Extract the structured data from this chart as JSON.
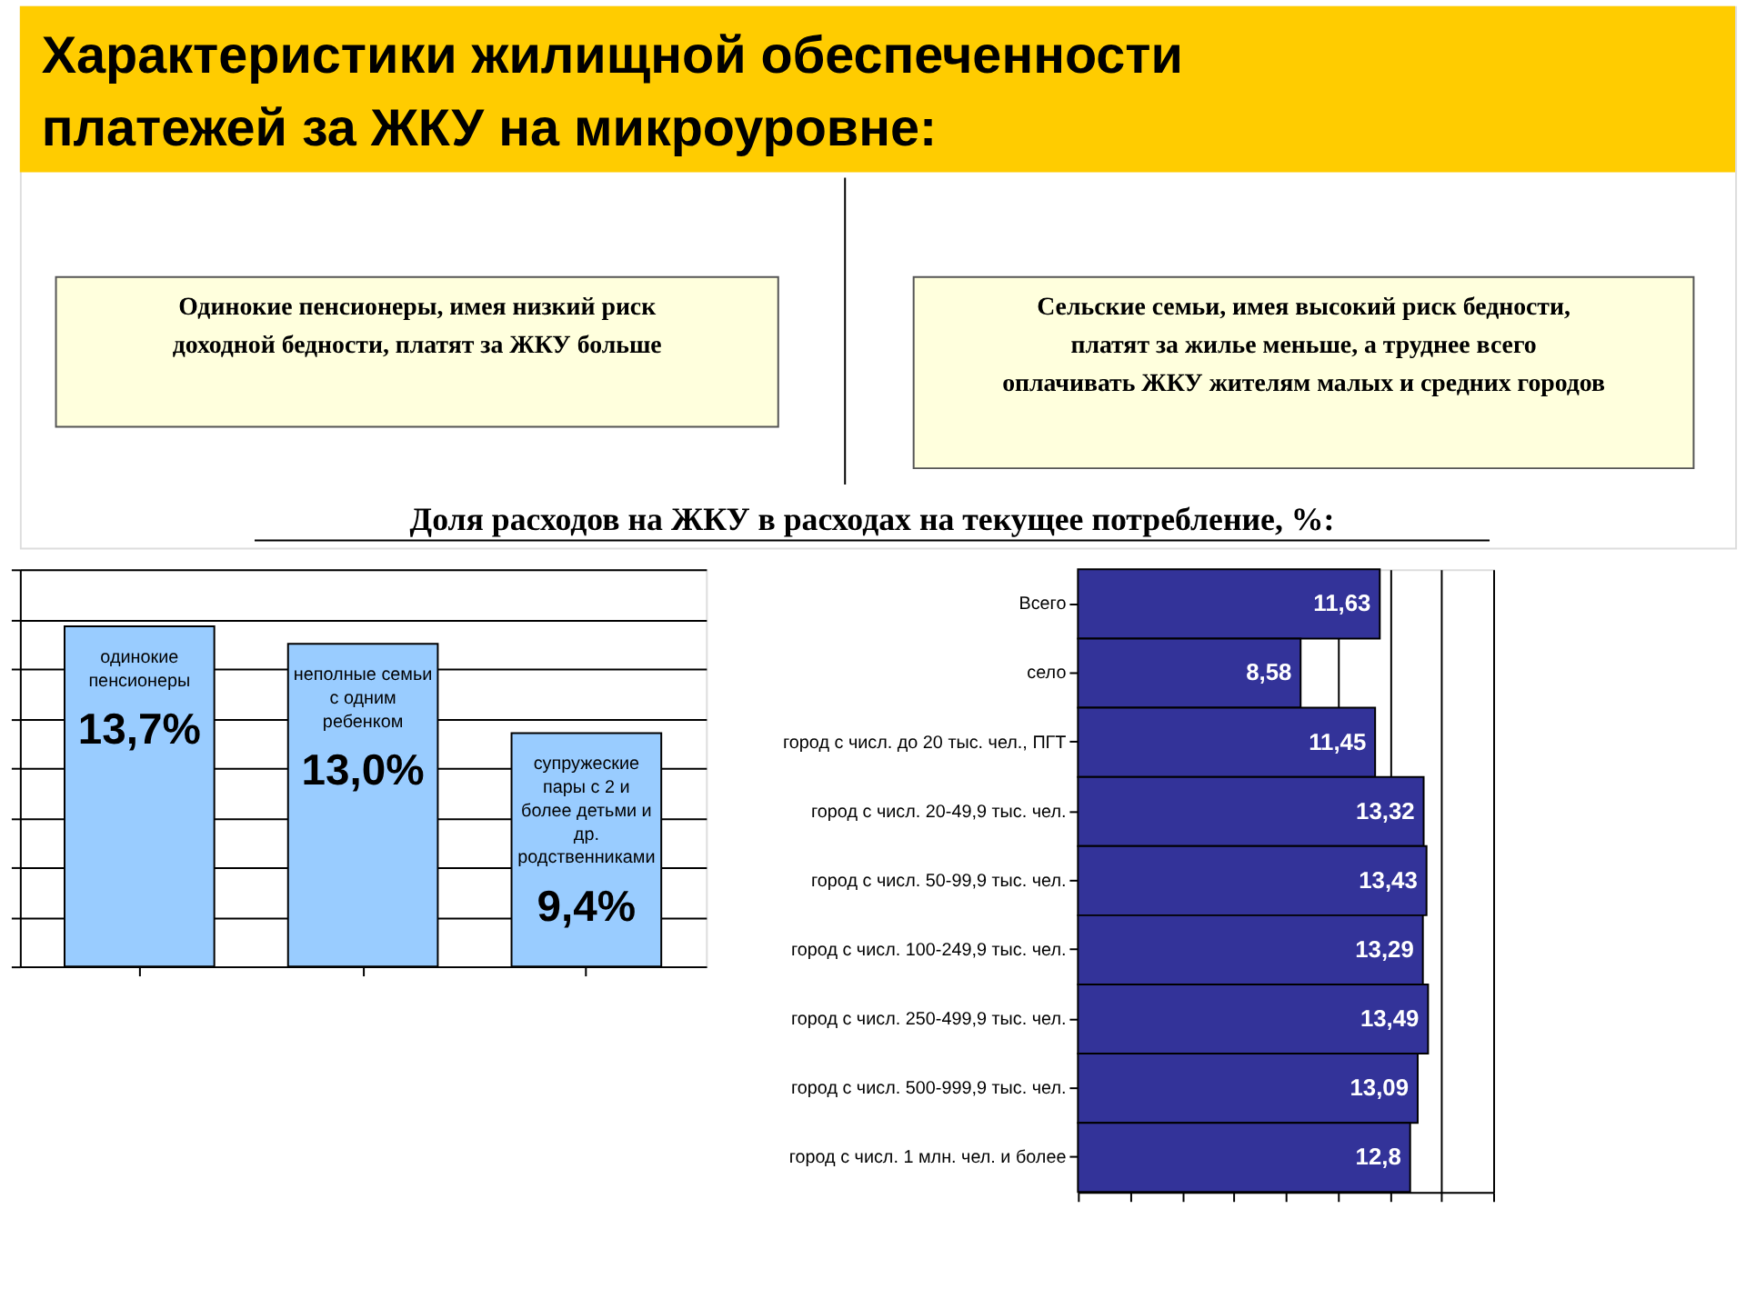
{
  "chart_data": [
    {
      "type": "bar",
      "title": "Характеристики жилищной обеспеченности платежей за ЖКУ на микроуровне:",
      "subtitle": "Доля расходов на ЖКУ в расходах на текущее потребление, %:",
      "annotations": [
        "Одинокие пенсионеры, имея низкий риск доходной бедности, платят за ЖКУ больше"
      ],
      "categories": [
        "одинокие пенсионеры",
        "неполные семьи с одним ребенком",
        "супружеские пары с 2 и более детьми и др. родственниками"
      ],
      "values": [
        13.7,
        13.0,
        9.4
      ],
      "value_labels": [
        "13,7%",
        "13,0%",
        "9,4%"
      ],
      "color": "#99ccff",
      "ylim": [
        0,
        16
      ],
      "yticks": [
        {
          "value": 0,
          "label": null
        },
        {
          "value": 2,
          "label": null
        },
        {
          "value": 4,
          "label": null
        },
        {
          "value": 6,
          "label": null
        },
        {
          "value": 8,
          "label": null
        },
        {
          "value": 10,
          "label": null
        },
        {
          "value": 12,
          "label": null
        },
        {
          "value": 14,
          "label": null
        },
        {
          "value": 16,
          "label": null
        }
      ],
      "grid": "y",
      "tick_labels": false
    },
    {
      "type": "bar",
      "orientation": "horizontal",
      "annotations": [
        "Сельские семьи, имея высокий риск бедности, платят за жилье меньше, а труднее всего оплачивать ЖКУ жителям малых и средних городов"
      ],
      "categories": [
        "Всего",
        "село",
        "город с числ. до 20 тыс. чел., ПГТ",
        "город с числ. 20-49,9 тыс. чел.",
        "город с числ. 50-99,9 тыс. чел.",
        "город с числ. 100-249,9 тыс. чел.",
        "город с числ. 250-499,9 тыс. чел.",
        "город с числ. 500-999,9 тыс. чел.",
        "город с числ. 1 млн. чел. и более"
      ],
      "values": [
        11.63,
        8.58,
        11.45,
        13.32,
        13.43,
        13.29,
        13.49,
        13.09,
        12.8
      ],
      "value_labels": [
        "11,63",
        "8,58",
        "11,45",
        "13,32",
        "13,43",
        "13,29",
        "13,49",
        "13,09",
        "12,8"
      ],
      "color": "#333399",
      "xlim": [
        0,
        16
      ],
      "xticks": [
        {
          "value": 0,
          "label": null
        },
        {
          "value": 2,
          "label": null
        },
        {
          "value": 4,
          "label": null
        },
        {
          "value": 6,
          "label": null
        },
        {
          "value": 8,
          "label": null
        },
        {
          "value": 10,
          "label": null
        },
        {
          "value": 12,
          "label": null
        },
        {
          "value": 14,
          "label": null
        },
        {
          "value": 16,
          "label": null
        }
      ],
      "grid": "x",
      "tick_labels": "y"
    }
  ]
}
